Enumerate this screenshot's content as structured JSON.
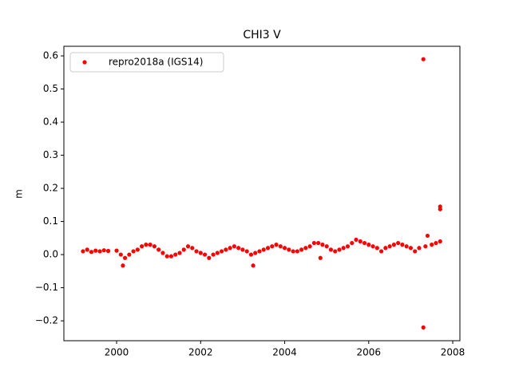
{
  "chart_data": {
    "type": "scatter",
    "title": "CHI3 V",
    "y_label": "m",
    "x": [
      1999.2,
      1999.3,
      1999.4,
      1999.5,
      1999.6,
      1999.7,
      1999.8,
      2000.0,
      2000.1,
      2000.15,
      2000.2,
      2000.3,
      2000.4,
      2000.5,
      2000.6,
      2000.7,
      2000.8,
      2000.9,
      2001.0,
      2001.1,
      2001.2,
      2001.3,
      2001.4,
      2001.5,
      2001.6,
      2001.7,
      2001.8,
      2001.9,
      2002.0,
      2002.1,
      2002.2,
      2002.3,
      2002.4,
      2002.5,
      2002.6,
      2002.7,
      2002.8,
      2002.9,
      2003.0,
      2003.1,
      2003.2,
      2003.25,
      2003.3,
      2003.4,
      2003.5,
      2003.6,
      2003.7,
      2003.8,
      2003.9,
      2004.0,
      2004.1,
      2004.2,
      2004.3,
      2004.4,
      2004.5,
      2004.6,
      2004.7,
      2004.8,
      2004.85,
      2004.9,
      2005.0,
      2005.1,
      2005.2,
      2005.3,
      2005.4,
      2005.5,
      2005.6,
      2005.7,
      2005.8,
      2005.9,
      2006.0,
      2006.1,
      2006.2,
      2006.3,
      2006.4,
      2006.5,
      2006.6,
      2006.7,
      2006.8,
      2006.9,
      2007.0,
      2007.1,
      2007.2,
      2007.3,
      2007.3,
      2007.35,
      2007.4,
      2007.5,
      2007.6,
      2007.7,
      2007.7,
      2007.7
    ],
    "series": [
      {
        "name": "repro2018a (IGS14)",
        "color": "#ff0000",
        "values": [
          0.01,
          0.015,
          0.008,
          0.012,
          0.01,
          0.013,
          0.011,
          0.012,
          0.0,
          -0.033,
          -0.01,
          0.0,
          0.01,
          0.015,
          0.025,
          0.03,
          0.03,
          0.025,
          0.015,
          0.005,
          -0.005,
          -0.005,
          0.0,
          0.005,
          0.015,
          0.025,
          0.02,
          0.01,
          0.005,
          0.0,
          -0.01,
          0.0,
          0.005,
          0.01,
          0.015,
          0.02,
          0.025,
          0.02,
          0.015,
          0.01,
          0.0,
          -0.033,
          0.005,
          0.01,
          0.015,
          0.02,
          0.025,
          0.03,
          0.025,
          0.02,
          0.015,
          0.01,
          0.01,
          0.015,
          0.02,
          0.025,
          0.035,
          0.035,
          -0.01,
          0.03,
          0.025,
          0.015,
          0.01,
          0.015,
          0.02,
          0.025,
          0.035,
          0.045,
          0.04,
          0.035,
          0.03,
          0.025,
          0.02,
          0.01,
          0.02,
          0.025,
          0.03,
          0.035,
          0.03,
          0.025,
          0.02,
          0.01,
          0.02,
          0.59,
          -0.22,
          0.025,
          0.057,
          0.03,
          0.035,
          0.04,
          0.145,
          0.137
        ]
      }
    ],
    "xlim": [
      1998.745,
      2008.17
    ],
    "xticks": [
      2000,
      2002,
      2004,
      2006,
      2008
    ],
    "ylim": [
      -0.26,
      0.629
    ],
    "yticks": [
      {
        "value": -0.2,
        "label": "−0.2"
      },
      {
        "value": -0.1,
        "label": "−0.1"
      },
      {
        "value": 0,
        "label": "0.0"
      },
      0.1,
      0.2,
      0.3,
      0.4,
      0.5,
      0.6
    ],
    "legend": "upper left",
    "grid": false
  }
}
